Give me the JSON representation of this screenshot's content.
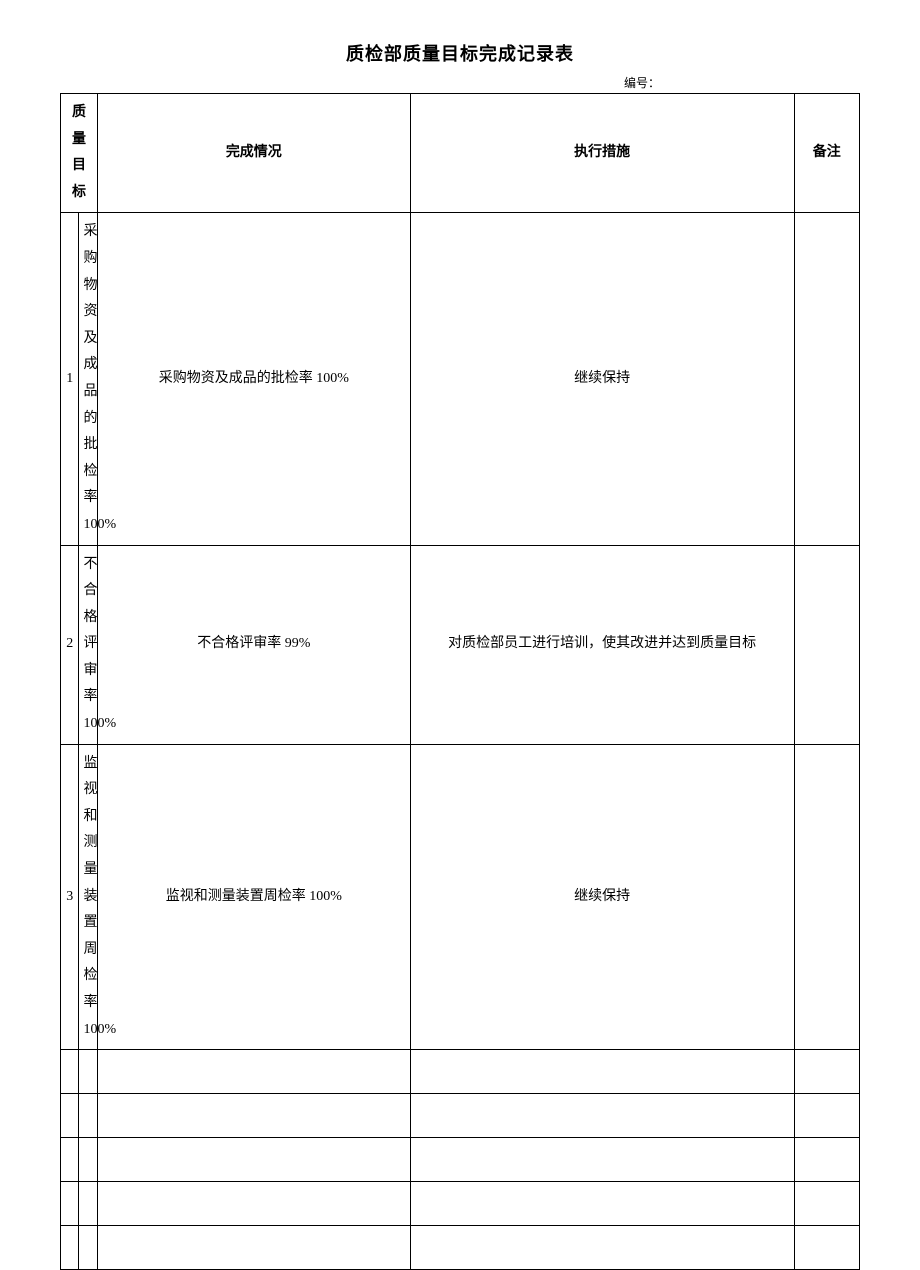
{
  "title": "质检部质量目标完成记录表",
  "serial_label": "编号：",
  "table": {
    "columns": [
      "质量目标",
      "完成情况",
      "执行措施",
      "备注"
    ],
    "rows": [
      {
        "num": "1",
        "goal": "采购物资及成品的批检率 100%",
        "completion": "采购物资及成品的批检率 100%",
        "measures": "继续保持",
        "notes": ""
      },
      {
        "num": "2",
        "goal": "不合格评审率 100%",
        "completion": "不合格评审率 99%",
        "measures": "对质检部员工进行培训，使其改进并达到质量目标",
        "notes": ""
      },
      {
        "num": "3",
        "goal": "监视和测量装置周检率 100%",
        "completion": "监视和测量装置周检率 100%",
        "measures": "继续保持",
        "notes": ""
      },
      {
        "num": "",
        "goal": "",
        "completion": "",
        "measures": "",
        "notes": ""
      },
      {
        "num": "",
        "goal": "",
        "completion": "",
        "measures": "",
        "notes": ""
      },
      {
        "num": "",
        "goal": "",
        "completion": "",
        "measures": "",
        "notes": ""
      },
      {
        "num": "",
        "goal": "",
        "completion": "",
        "measures": "",
        "notes": ""
      },
      {
        "num": "",
        "goal": "",
        "completion": "",
        "measures": "",
        "notes": ""
      }
    ]
  },
  "style": {
    "background_color": "#ffffff",
    "border_color": "#000000",
    "text_color": "#000000",
    "title_fontsize": 18,
    "cell_fontsize": 14,
    "serial_fontsize": 12,
    "col_widths": {
      "num": 26,
      "goal": 200,
      "completion": 220,
      "measures": 270,
      "notes": 46
    },
    "empty_row_height": 44
  }
}
